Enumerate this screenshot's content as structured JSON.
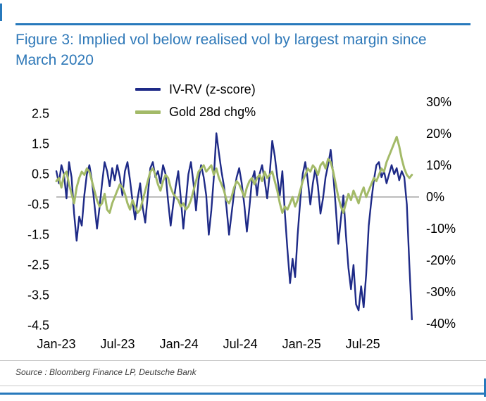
{
  "header": {
    "title": "Figure 3: Implied vol below realised vol by largest margin since March 2020"
  },
  "footer": {
    "source": "Source : Bloomberg Finance LP, Deutsche Bank"
  },
  "colors": {
    "accent_blue": "#2779bc",
    "title_blue": "#2e78b8",
    "navy_line": "#1e2a87",
    "olive_line": "#a3ba68",
    "zero_line": "#a6a6a6",
    "divider_gray": "#c9c9c9",
    "text_black": "#000000"
  },
  "chart_data": {
    "type": "line",
    "title": "Figure 3: Implied vol below realised vol by largest margin since March 2020",
    "legend_position": "top-center",
    "grid": "single horizontal line at zero only",
    "axes": {
      "x": {
        "unit": "months since Jan-2023",
        "min_month": 0,
        "max_month": 35.5,
        "ticks": [
          {
            "m": 0,
            "label": "Jan-23"
          },
          {
            "m": 6,
            "label": "Jul-23"
          },
          {
            "m": 12,
            "label": "Jan-24"
          },
          {
            "m": 18,
            "label": "Jul-24"
          },
          {
            "m": 24,
            "label": "Jan-25"
          },
          {
            "m": 30,
            "label": "Jul-25"
          }
        ]
      },
      "left": {
        "label": "IV-RV z-score",
        "min": -4.67,
        "max": 3.0,
        "ticks": [
          {
            "v": 2.5,
            "label": "2.5"
          },
          {
            "v": 1.5,
            "label": "1.5"
          },
          {
            "v": 0.5,
            "label": "0.5"
          },
          {
            "v": -0.5,
            "label": "-0.5"
          },
          {
            "v": -1.5,
            "label": "-1.5"
          },
          {
            "v": -2.5,
            "label": "-2.5"
          },
          {
            "v": -3.5,
            "label": "-3.5"
          },
          {
            "v": -4.5,
            "label": "-4.5"
          }
        ]
      },
      "right": {
        "label": "Gold 28d chg%",
        "min": -42.2,
        "max": 31.1,
        "ticks": [
          {
            "v": 30,
            "label": "30%"
          },
          {
            "v": 20,
            "label": "20%"
          },
          {
            "v": 10,
            "label": "10%"
          },
          {
            "v": 0,
            "label": "0%"
          },
          {
            "v": -10,
            "label": "-10%"
          },
          {
            "v": -20,
            "label": "-20%"
          },
          {
            "v": -30,
            "label": "-30%"
          },
          {
            "v": -40,
            "label": "-40%"
          }
        ]
      }
    },
    "baseline": {
      "axis": "right",
      "value": 0
    },
    "series": [
      {
        "name": "IV-RV (z-score)",
        "axis": "left",
        "color": "#1e2a87",
        "stroke_width": 2.4,
        "x_start_month": 0,
        "x_end_month": 34.8,
        "values": [
          0.6,
          0.2,
          0.8,
          0.5,
          -0.3,
          0.9,
          0.4,
          -0.8,
          -1.7,
          -0.9,
          -1.2,
          -0.2,
          0.5,
          0.8,
          0.3,
          -0.5,
          -1.3,
          -0.6,
          0.2,
          0.9,
          0.6,
          0.1,
          0.7,
          0.3,
          0.8,
          0.4,
          -0.2,
          0.6,
          0.9,
          0.3,
          -0.4,
          -1.0,
          -0.3,
          0.2,
          -0.6,
          -1.1,
          -0.2,
          0.7,
          0.9,
          0.4,
          0.6,
          0.2,
          0.8,
          0.5,
          -0.4,
          -1.2,
          -0.5,
          0.1,
          0.6,
          -0.3,
          -1.3,
          -0.4,
          0.5,
          0.9,
          0.2,
          -0.7,
          0.3,
          0.8,
          0.4,
          -0.2,
          -1.5,
          -0.7,
          0.4,
          1.85,
          1.2,
          0.6,
          0.1,
          -0.6,
          -1.5,
          -0.8,
          -0.1,
          0.4,
          0.7,
          0.2,
          -0.5,
          -1.4,
          -0.6,
          0.3,
          0.6,
          -0.2,
          0.5,
          0.8,
          0.3,
          -0.3,
          0.5,
          1.6,
          1.1,
          0.4,
          -0.2,
          0.6,
          -0.8,
          -2.0,
          -3.1,
          -2.3,
          -2.9,
          -1.5,
          -0.4,
          0.5,
          0.9,
          0.3,
          -0.5,
          0.2,
          0.7,
          0.1,
          -0.8,
          -0.3,
          0.4,
          0.8,
          1.3,
          0.5,
          -0.6,
          -1.8,
          -1.0,
          -0.2,
          -1.5,
          -2.6,
          -3.3,
          -2.5,
          -3.8,
          -4.0,
          -3.2,
          -3.9,
          -2.8,
          -1.2,
          -0.4,
          0.3,
          0.8,
          0.9,
          0.4,
          0.6,
          0.2,
          0.5,
          0.8,
          0.5,
          0.7,
          0.3,
          0.6,
          0.4,
          -0.5,
          -2.5,
          -4.3
        ]
      },
      {
        "name": "Gold 28d chg%",
        "axis": "right",
        "color": "#a3ba68",
        "stroke_width": 3,
        "x_start_month": 0,
        "x_end_month": 34.8,
        "values": [
          5,
          6,
          3,
          7,
          8,
          4,
          1,
          -2,
          3,
          6,
          8,
          7,
          9,
          8,
          5,
          2,
          -1,
          -3,
          -2,
          1,
          -4,
          -5,
          -2,
          0,
          2,
          4,
          3,
          1,
          -2,
          -4,
          -1,
          -3,
          -5,
          -4,
          -1,
          2,
          5,
          8,
          9,
          7,
          4,
          2,
          5,
          7,
          6,
          3,
          1,
          0,
          -1,
          -3,
          -2,
          -4,
          -3,
          -1,
          2,
          5,
          8,
          9,
          10,
          8,
          9,
          10,
          7,
          9,
          6,
          4,
          2,
          -1,
          -2,
          0,
          3,
          5,
          4,
          2,
          0,
          3,
          5,
          6,
          4,
          6,
          7,
          5,
          8,
          6,
          7,
          8,
          5,
          2,
          -2,
          -5,
          -3,
          -4,
          -2,
          0,
          -3,
          -1,
          2,
          5,
          7,
          9,
          8,
          10,
          9,
          7,
          10,
          11,
          9,
          12,
          11,
          8,
          4,
          0,
          -3,
          -5,
          -2,
          1,
          -1,
          2,
          0,
          -2,
          1,
          3,
          0,
          2,
          4,
          6,
          5,
          7,
          9,
          8,
          11,
          13,
          15,
          17,
          19,
          16,
          12,
          9,
          7,
          6,
          7
        ]
      }
    ]
  }
}
